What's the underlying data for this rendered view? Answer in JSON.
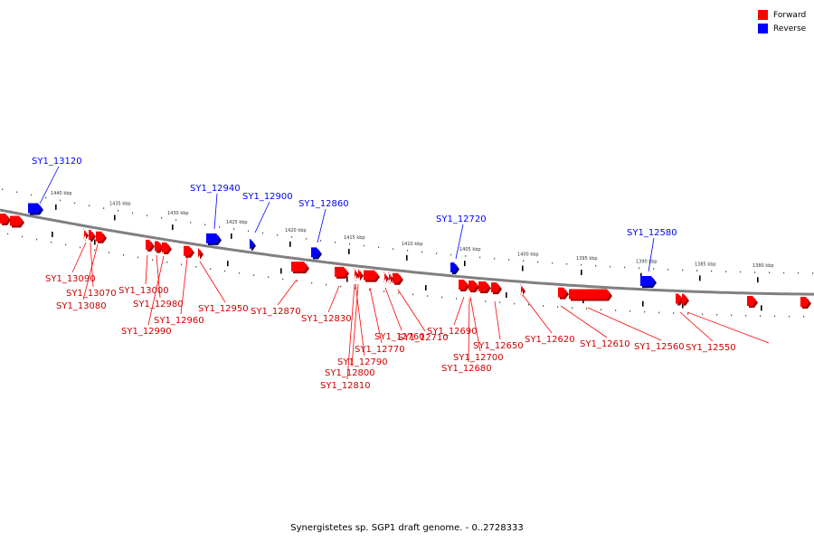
{
  "legend": {
    "forward": {
      "label": "Forward",
      "color": "#ff0000"
    },
    "reverse": {
      "label": "Reverse",
      "color": "#0000ff"
    }
  },
  "caption": "Synergistetes sp. SGP1 draft genome. - 0..2728333",
  "ticks": [
    "1440 kbp",
    "1435 kbp",
    "1430 kbp",
    "1425 kbp",
    "1420 kbp",
    "1415 kbp",
    "1410 kbp",
    "1405 kbp",
    "1400 kbp",
    "1395 kbp",
    "1390 kbp",
    "1385 kbp",
    "1380 kbp"
  ],
  "reverse_genes": [
    "SY1_13120",
    "SY1_12940",
    "SY1_12900",
    "SY1_12860",
    "SY1_12720",
    "SY1_12580"
  ],
  "forward_genes": [
    "SY1_13090",
    "SY1_13070",
    "SY1_13080",
    "SY1_13000",
    "SY1_12980",
    "SY1_12990",
    "SY1_12960",
    "SY1_12950",
    "SY1_12870",
    "SY1_12830",
    "SY1_12790",
    "SY1_12800",
    "SY1_12810",
    "SY1_12770",
    "SY1_12760",
    "SY1_12710",
    "SY1_12690",
    "SY1_12700",
    "SY1_12680",
    "SY1_12650",
    "SY1_12620",
    "SY1_12610",
    "SY1_12560",
    "SY1_12550"
  ]
}
